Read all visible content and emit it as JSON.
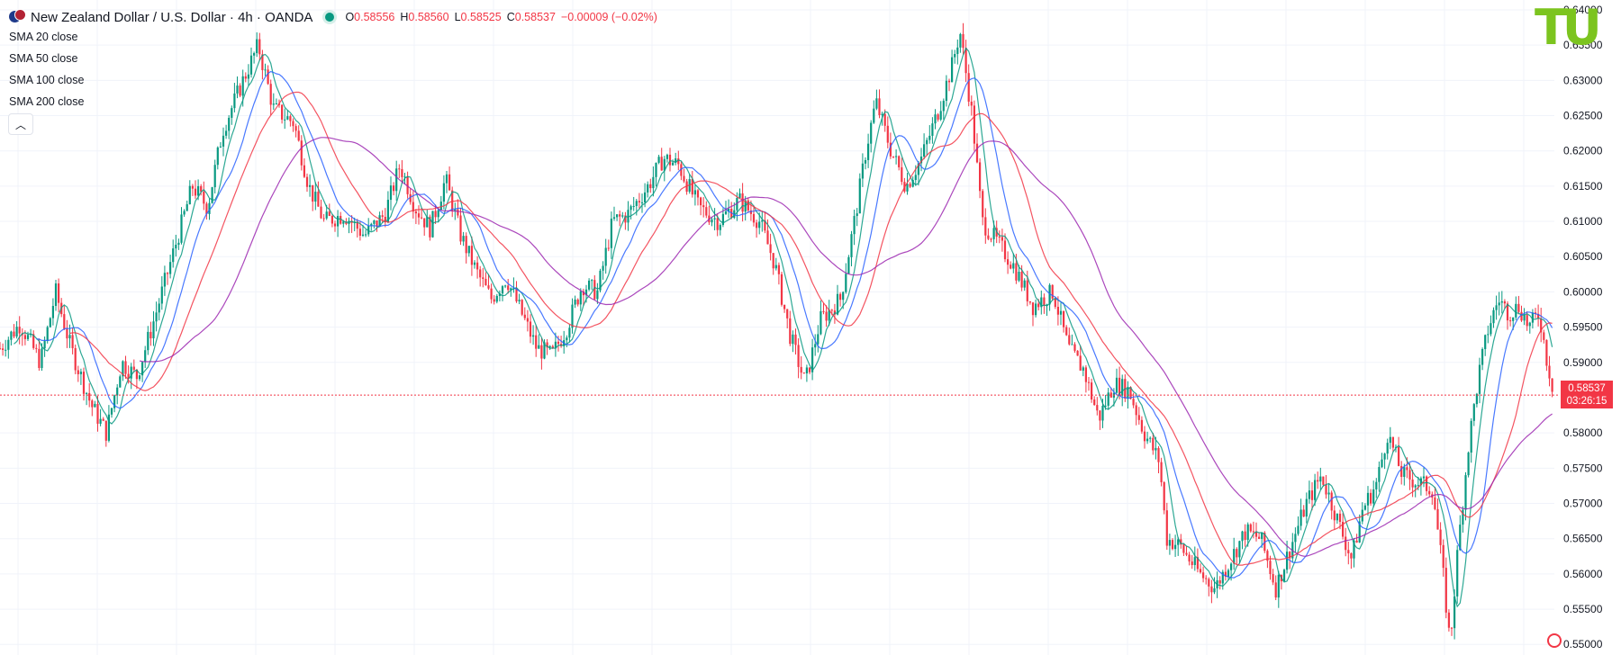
{
  "header": {
    "symbol": "New Zealand Dollar / U.S. Dollar · 4h · OANDA",
    "o_label": "O",
    "o_value": "0.58556",
    "h_label": "H",
    "h_value": "0.58560",
    "l_label": "L",
    "l_value": "0.58525",
    "c_label": "C",
    "c_value": "0.58537",
    "change": "−0.00009 (−0.02%)"
  },
  "indicators": [
    {
      "name": "SMA",
      "arg": "20 close",
      "color": "#089981"
    },
    {
      "name": "SMA",
      "arg": "50 close",
      "color": "#2962ff"
    },
    {
      "name": "SMA",
      "arg": "100 close",
      "color": "#f23645"
    },
    {
      "name": "SMA",
      "arg": "200 close",
      "color": "#9c27b0"
    }
  ],
  "collapse_icon": "chevron-up-icon",
  "logo_text": "TU",
  "price_label": {
    "price": "0.58537",
    "countdown": "03:26:15"
  },
  "chart_data": {
    "type": "line",
    "series_style": "candlestick",
    "title": "",
    "xlabel": "",
    "ylabel": "",
    "ylim": [
      0.5485,
      0.6414
    ],
    "y_ticks": [
      "0.64000",
      "0.63500",
      "0.63000",
      "0.62500",
      "0.62000",
      "0.61500",
      "0.61000",
      "0.60500",
      "0.60000",
      "0.59500",
      "0.59000",
      "0.58000",
      "0.57500",
      "0.57000",
      "0.56500",
      "0.56000",
      "0.55500",
      "0.55000"
    ],
    "grid": true,
    "last_price": 0.58537,
    "up_color": "#089981",
    "down_color": "#f23645",
    "price_path": [
      [
        0,
        0.592
      ],
      [
        20,
        0.5955
      ],
      [
        40,
        0.59
      ],
      [
        55,
        0.6
      ],
      [
        70,
        0.592
      ],
      [
        90,
        0.584
      ],
      [
        105,
        0.58
      ],
      [
        120,
        0.59
      ],
      [
        135,
        0.588
      ],
      [
        150,
        0.595
      ],
      [
        170,
        0.605
      ],
      [
        190,
        0.615
      ],
      [
        205,
        0.612
      ],
      [
        220,
        0.623
      ],
      [
        240,
        0.63
      ],
      [
        255,
        0.635
      ],
      [
        270,
        0.626
      ],
      [
        290,
        0.624
      ],
      [
        305,
        0.615
      ],
      [
        320,
        0.61
      ],
      [
        340,
        0.611
      ],
      [
        360,
        0.608
      ],
      [
        380,
        0.611
      ],
      [
        395,
        0.618
      ],
      [
        410,
        0.612
      ],
      [
        425,
        0.609
      ],
      [
        440,
        0.616
      ],
      [
        455,
        0.608
      ],
      [
        470,
        0.603
      ],
      [
        485,
        0.599
      ],
      [
        500,
        0.602
      ],
      [
        515,
        0.597
      ],
      [
        530,
        0.592
      ],
      [
        545,
        0.591
      ],
      [
        560,
        0.595
      ],
      [
        575,
        0.601
      ],
      [
        590,
        0.6
      ],
      [
        605,
        0.61
      ],
      [
        620,
        0.611
      ],
      [
        640,
        0.615
      ],
      [
        655,
        0.619
      ],
      [
        670,
        0.618
      ],
      [
        690,
        0.612
      ],
      [
        710,
        0.61
      ],
      [
        730,
        0.613
      ],
      [
        750,
        0.61
      ],
      [
        765,
        0.604
      ],
      [
        780,
        0.594
      ],
      [
        795,
        0.587
      ],
      [
        810,
        0.596
      ],
      [
        830,
        0.599
      ],
      [
        845,
        0.611
      ],
      [
        855,
        0.62
      ],
      [
        865,
        0.627
      ],
      [
        880,
        0.62
      ],
      [
        895,
        0.615
      ],
      [
        910,
        0.619
      ],
      [
        925,
        0.625
      ],
      [
        940,
        0.632
      ],
      [
        948,
        0.637
      ],
      [
        960,
        0.625
      ],
      [
        970,
        0.61
      ],
      [
        985,
        0.607
      ],
      [
        1000,
        0.604
      ],
      [
        1020,
        0.598
      ],
      [
        1040,
        0.6
      ],
      [
        1055,
        0.592
      ],
      [
        1070,
        0.589
      ],
      [
        1085,
        0.582
      ],
      [
        1100,
        0.587
      ],
      [
        1115,
        0.586
      ],
      [
        1130,
        0.58
      ],
      [
        1145,
        0.576
      ],
      [
        1152,
        0.565
      ],
      [
        1165,
        0.564
      ],
      [
        1185,
        0.56
      ],
      [
        1200,
        0.558
      ],
      [
        1215,
        0.562
      ],
      [
        1230,
        0.566
      ],
      [
        1245,
        0.565
      ],
      [
        1260,
        0.558
      ],
      [
        1275,
        0.564
      ],
      [
        1290,
        0.57
      ],
      [
        1305,
        0.574
      ],
      [
        1320,
        0.568
      ],
      [
        1335,
        0.562
      ],
      [
        1345,
        0.569
      ],
      [
        1360,
        0.573
      ],
      [
        1370,
        0.58
      ],
      [
        1385,
        0.574
      ],
      [
        1400,
        0.573
      ],
      [
        1415,
        0.572
      ],
      [
        1425,
        0.56
      ],
      [
        1432,
        0.55
      ],
      [
        1440,
        0.564
      ],
      [
        1450,
        0.578
      ],
      [
        1460,
        0.588
      ],
      [
        1470,
        0.595
      ],
      [
        1480,
        0.599
      ],
      [
        1490,
        0.597
      ],
      [
        1500,
        0.598
      ],
      [
        1510,
        0.595
      ],
      [
        1520,
        0.597
      ],
      [
        1528,
        0.59
      ],
      [
        1535,
        0.5854
      ]
    ],
    "sma_periods": [
      20,
      50,
      100,
      200
    ]
  }
}
